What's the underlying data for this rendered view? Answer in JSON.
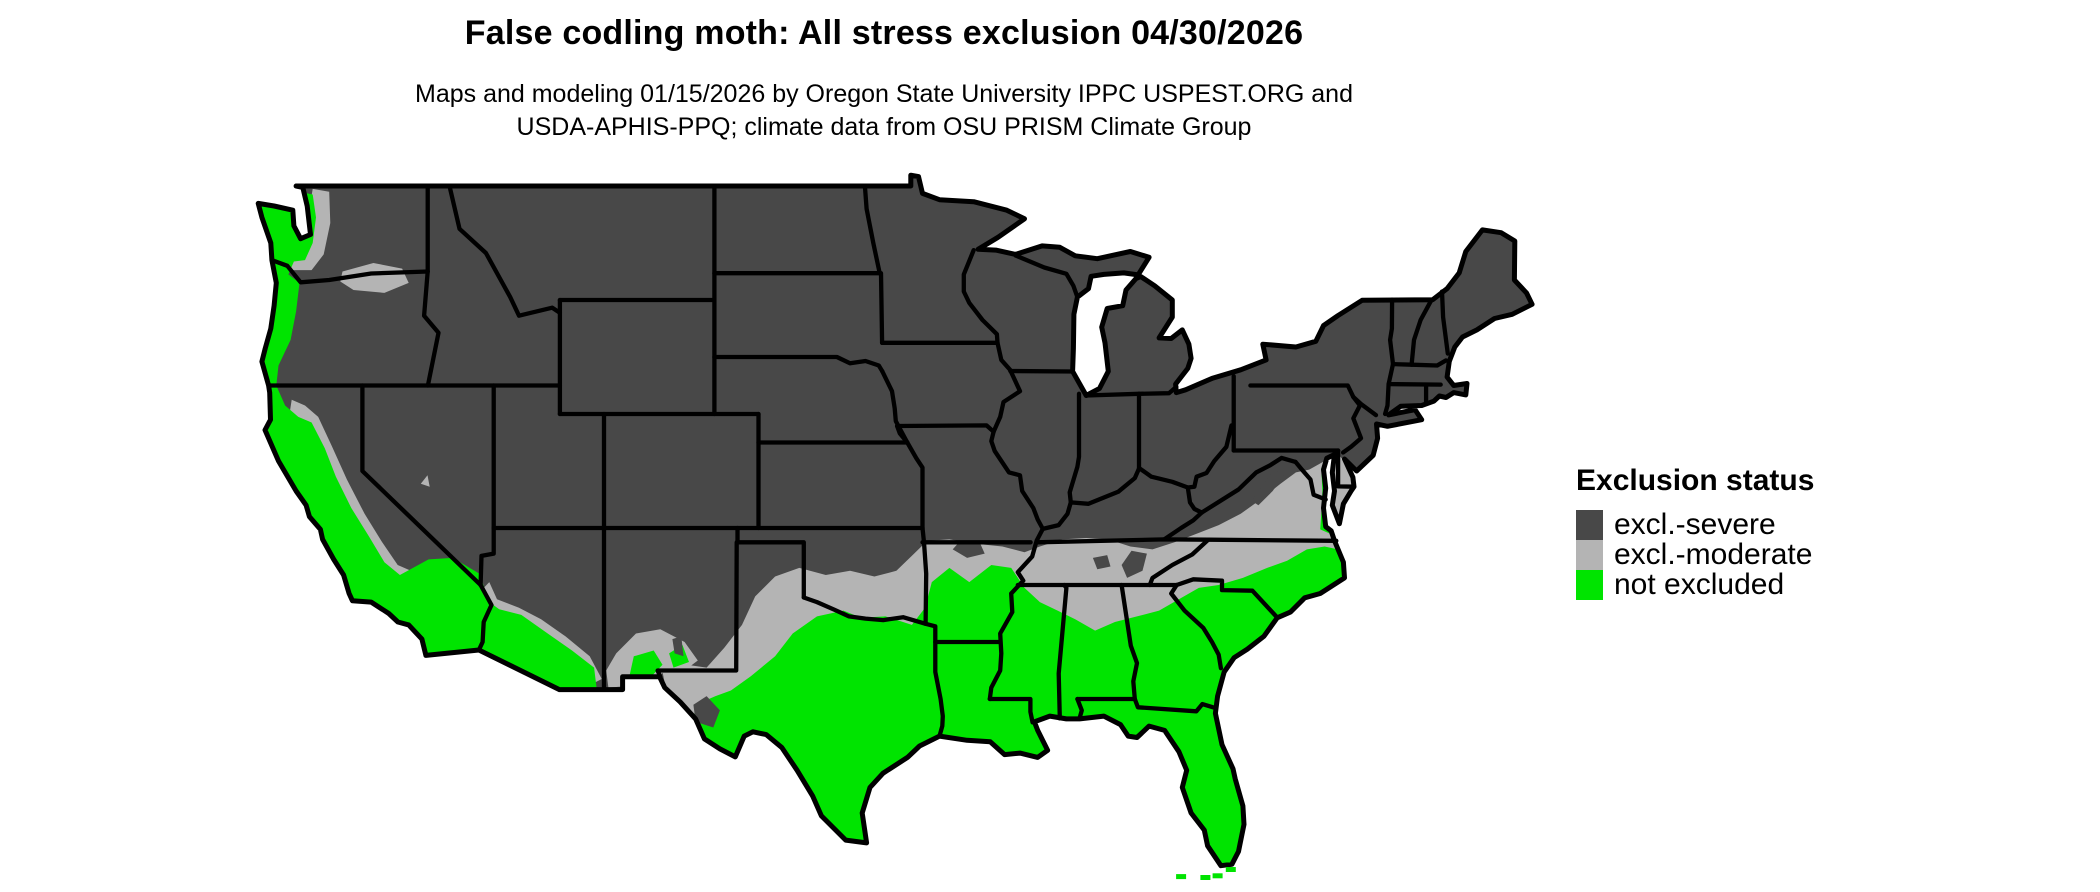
{
  "header": {
    "title": "False codling moth: All stress exclusion 04/30/2026",
    "subtitle": [
      "Maps and modeling 01/15/2026 by Oregon State University IPPC USPEST.ORG and",
      "USDA-APHIS-PPQ; climate data from OSU PRISM Climate Group"
    ]
  },
  "legend": {
    "title": "Exclusion status",
    "items": [
      {
        "label": "excl.-severe",
        "color": "#484848"
      },
      {
        "label": "excl.-moderate",
        "color": "#b4b4b4"
      },
      {
        "label": "not excluded",
        "color": "#00e400"
      }
    ]
  },
  "map": {
    "outline_color": "#000000",
    "water_color": "#ffffff"
  }
}
